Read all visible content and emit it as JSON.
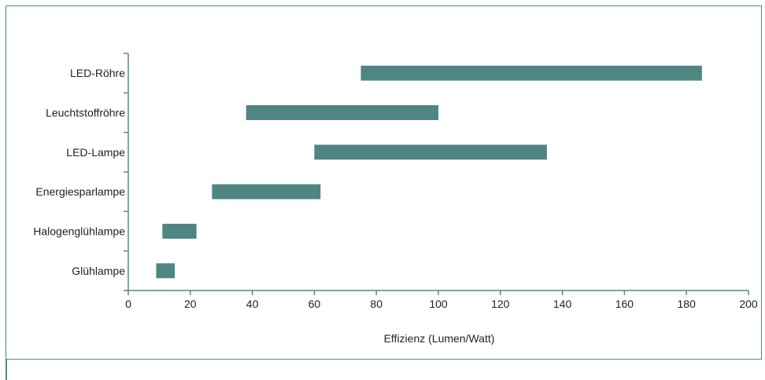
{
  "chart_data": {
    "type": "bar",
    "orientation": "horizontal-range",
    "title": "",
    "xlabel": "Effizienz (Lumen/Watt)",
    "ylabel": "",
    "xlim": [
      0,
      200
    ],
    "x_ticks": [
      0,
      20,
      40,
      60,
      80,
      100,
      120,
      140,
      160,
      180,
      200
    ],
    "grid": false,
    "bar_color": "#4f8583",
    "categories": [
      "LED-Röhre",
      "Leuchtstoffröhre",
      "LED-Lampe",
      "Energiesparlampe",
      "Halogenglühlampe",
      "Glühlampe"
    ],
    "ranges": [
      [
        75,
        185
      ],
      [
        38,
        100
      ],
      [
        60,
        135
      ],
      [
        27,
        62
      ],
      [
        11,
        22
      ],
      [
        9,
        15
      ]
    ]
  }
}
